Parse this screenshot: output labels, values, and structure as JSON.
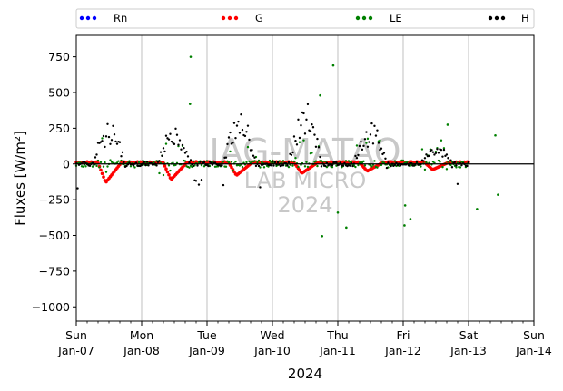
{
  "chart_data": {
    "type": "scatter",
    "ylabel": "Fluxes [W/m²]",
    "xlabel": "2024",
    "ylim": [
      -1100,
      900
    ],
    "xlim": [
      0,
      7
    ],
    "yticks": [
      -1000,
      -750,
      -500,
      -250,
      0,
      250,
      500,
      750
    ],
    "xticks": [
      {
        "pos": 0,
        "day": "Sun",
        "date": "Jan-07"
      },
      {
        "pos": 1,
        "day": "Mon",
        "date": "Jan-08"
      },
      {
        "pos": 2,
        "day": "Tue",
        "date": "Jan-09"
      },
      {
        "pos": 3,
        "day": "Wed",
        "date": "Jan-10"
      },
      {
        "pos": 4,
        "day": "Thu",
        "date": "Jan-11"
      },
      {
        "pos": 5,
        "day": "Fri",
        "date": "Jan-12"
      },
      {
        "pos": 6,
        "day": "Sat",
        "date": "Jan-13"
      },
      {
        "pos": 7,
        "day": "Sun",
        "date": "Jan-14"
      }
    ],
    "grid": "vertical at day boundaries",
    "legend_position": "top, above plot",
    "watermark": [
      "IAG-MATAO",
      "LAB MICRO",
      "2024"
    ],
    "series": [
      {
        "name": "Rn",
        "color": "#0000ff"
      },
      {
        "name": "G",
        "color": "#ff0000"
      },
      {
        "name": "LE",
        "color": "#008000"
      },
      {
        "name": "H",
        "color": "#000000"
      }
    ],
    "daily_patterns": {
      "x_units": "days since Sun Jan-07 00:00",
      "G_min": [
        -130,
        -110,
        -80,
        -65,
        -50,
        -40,
        10
      ],
      "H_peak": [
        270,
        240,
        350,
        400,
        260,
        110,
        160
      ],
      "LE_extremes": [
        {
          "x": 1.75,
          "y": 750
        },
        {
          "x": 1.74,
          "y": 420
        },
        {
          "x": 3.73,
          "y": 480
        },
        {
          "x": 3.93,
          "y": 690
        },
        {
          "x": 3.76,
          "y": -505
        },
        {
          "x": 4.13,
          "y": -445
        },
        {
          "x": 4.0,
          "y": -340
        },
        {
          "x": 5.11,
          "y": -385
        },
        {
          "x": 5.02,
          "y": -430
        },
        {
          "x": 5.03,
          "y": -290
        },
        {
          "x": 5.68,
          "y": 275
        },
        {
          "x": 6.13,
          "y": -315
        },
        {
          "x": 6.45,
          "y": -215
        },
        {
          "x": 6.41,
          "y": 200
        }
      ]
    }
  }
}
